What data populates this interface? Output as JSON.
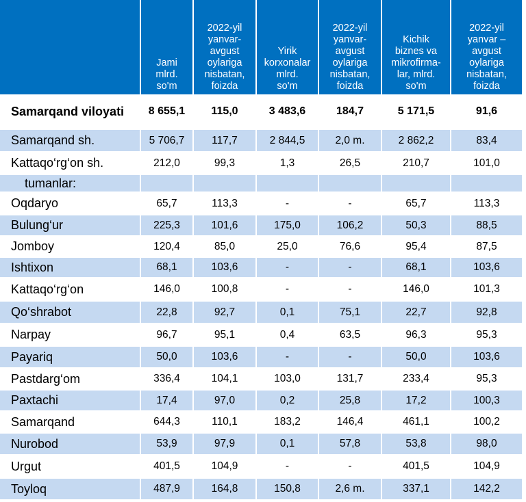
{
  "table": {
    "headers": [
      "",
      "Jami mlrd. so'm",
      "2022-yil yanvar-avgust oylariga nisbatan, foizda",
      "Yirik korxonalar mlrd. so'm",
      "2022-yil yanvar-avgust oylariga nisbatan, foizda",
      "Kichik biznes va mikrofirma-lar, mlrd. so'm",
      "2022-yil yanvar – avgust oylariga nisbatan, foizda"
    ],
    "header_lines": [
      [],
      [
        "Jami",
        "mlrd.",
        "so'm"
      ],
      [
        "2022-yil",
        "yanvar-",
        "avgust",
        "oylariga",
        "nisbatan,",
        "foizda"
      ],
      [
        "Yirik",
        "korxonalar",
        "mlrd.",
        "so'm"
      ],
      [
        "2022-yil",
        "yanvar-",
        "avgust",
        "oylariga",
        "nisbatan,",
        "foizda"
      ],
      [
        "Kichik",
        "biznes va",
        "mikrofirma-",
        "lar, mlrd.",
        "so'm"
      ],
      [
        "2022-yil",
        "yanvar –",
        "avgust",
        "oylariga",
        "nisbatan,",
        "foizda"
      ]
    ],
    "rows": [
      {
        "name": "Samarqand viloyati",
        "values": [
          "8 655,1",
          "115,0",
          "3 483,6",
          "184,7",
          "5 171,5",
          "91,6"
        ],
        "style": "total"
      },
      {
        "name": "Samarqand sh.",
        "values": [
          "5 706,7",
          "117,7",
          "2 844,5",
          "2,0 m.",
          "2 862,2",
          "83,4"
        ],
        "style": "shade"
      },
      {
        "name": "Kattaqo‘rg‘on  sh.",
        "values": [
          "212,0",
          "99,3",
          "1,3",
          "26,5",
          "210,7",
          "101,0"
        ],
        "style": "plain"
      },
      {
        "name": "tumanlar:",
        "values": [
          "",
          "",
          "",
          "",
          "",
          ""
        ],
        "style": "shade sub"
      },
      {
        "name": "Oqdaryo",
        "values": [
          "65,7",
          "113,3",
          "-",
          "-",
          "65,7",
          "113,3"
        ],
        "style": "plain"
      },
      {
        "name": "Bulung‘ur",
        "values": [
          "225,3",
          "101,6",
          "175,0",
          "106,2",
          "50,3",
          "88,5"
        ],
        "style": "shade"
      },
      {
        "name": "Jomboy",
        "values": [
          "120,4",
          "85,0",
          "25,0",
          "76,6",
          "95,4",
          "87,5"
        ],
        "style": "plain"
      },
      {
        "name": "Ishtixon",
        "values": [
          "68,1",
          "103,6",
          "-",
          "-",
          "68,1",
          "103,6"
        ],
        "style": "shade"
      },
      {
        "name": "Kattaqo‘rg‘on",
        "values": [
          "146,0",
          "100,8",
          "-",
          "-",
          "146,0",
          "101,3"
        ],
        "style": "plain"
      },
      {
        "name": "Qo‘shrabot",
        "values": [
          "22,8",
          "92,7",
          "0,1",
          "75,1",
          "22,7",
          "92,8"
        ],
        "style": "shade"
      },
      {
        "name": "Narpay",
        "values": [
          "96,7",
          "95,1",
          "0,4",
          "63,5",
          "96,3",
          "95,3"
        ],
        "style": "plain"
      },
      {
        "name": "Payariq",
        "values": [
          "50,0",
          "103,6",
          "-",
          "-",
          "50,0",
          "103,6"
        ],
        "style": "shade"
      },
      {
        "name": "Pastdarg‘om",
        "values": [
          "336,4",
          "104,1",
          "103,0",
          "131,7",
          "233,4",
          "95,3"
        ],
        "style": "plain"
      },
      {
        "name": "Paxtachi",
        "values": [
          "17,4",
          "97,0",
          "0,2",
          "25,8",
          "17,2",
          "100,3"
        ],
        "style": "shade"
      },
      {
        "name": "Samarqand",
        "values": [
          "644,3",
          "110,1",
          "183,2",
          "146,4",
          "461,1",
          "100,2"
        ],
        "style": "plain"
      },
      {
        "name": "Nurobod",
        "values": [
          "53,9",
          "97,9",
          "0,1",
          "57,8",
          "53,8",
          "98,0"
        ],
        "style": "shade"
      },
      {
        "name": "Urgut",
        "values": [
          "401,5",
          "104,9",
          "-",
          "-",
          "401,5",
          "104,9"
        ],
        "style": "plain"
      },
      {
        "name": "Toyloq",
        "values": [
          "487,9",
          "164,8",
          "150,8",
          "2,6 m.",
          "337,1",
          "142,2"
        ],
        "style": "shade"
      }
    ]
  },
  "colors": {
    "header_bg": "#0070c0",
    "shade_bg": "#c5d9f1",
    "plain_bg": "#ffffff"
  }
}
